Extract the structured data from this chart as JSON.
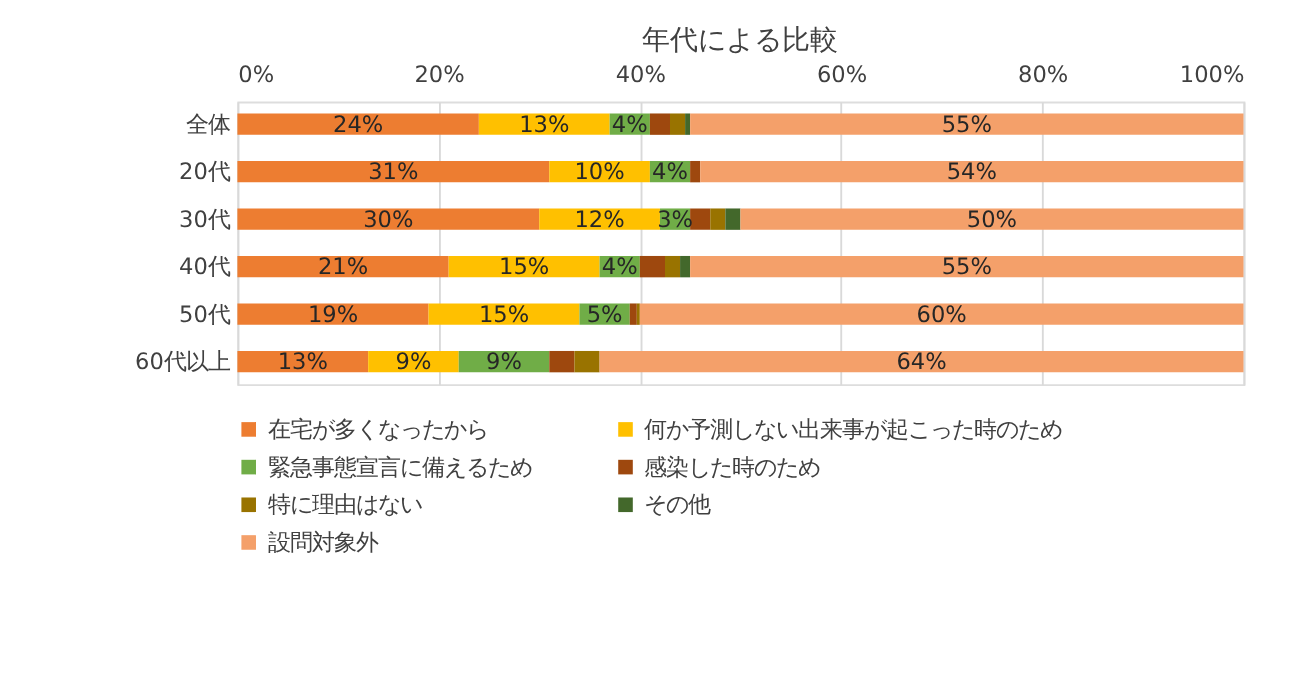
{
  "chart_data": {
    "type": "bar",
    "orientation": "horizontal",
    "stacked": true,
    "title": "年代による比較",
    "categories": [
      "全体",
      "20代",
      "30代",
      "40代",
      "50代",
      "60代以上"
    ],
    "series": [
      {
        "name": "在宅が多くなったから",
        "color": "#ed7d31",
        "values": [
          24,
          31,
          30,
          21,
          19,
          13
        ],
        "value_labels": [
          "24%",
          "31%",
          "30%",
          "21%",
          "19%",
          "13%"
        ]
      },
      {
        "name": "何か予測しない出来事が起こった時のため",
        "color": "#ffc000",
        "values": [
          13,
          10,
          12,
          15,
          15,
          9
        ],
        "value_labels": [
          "13%",
          "10%",
          "12%",
          "15%",
          "15%",
          "9%"
        ]
      },
      {
        "name": "緊急事態宣言に備えるため",
        "color": "#70ad47",
        "values": [
          4,
          4,
          3,
          4,
          5,
          9
        ],
        "value_labels": [
          "4%",
          "4%",
          "3%",
          "4%",
          "5%",
          "9%"
        ]
      },
      {
        "name": "感染した時のため",
        "color": "#9e480e",
        "values": [
          2,
          1,
          2,
          2.5,
          0.7,
          2.5
        ]
      },
      {
        "name": "特に理由はない",
        "color": "#997300",
        "values": [
          1.5,
          0,
          1.5,
          1.5,
          0.3,
          2.5
        ]
      },
      {
        "name": "その他",
        "color": "#43682b",
        "values": [
          0.5,
          0,
          1.5,
          1,
          0,
          0
        ]
      },
      {
        "name": "設問対象外",
        "color": "#f4a06a",
        "values": [
          55,
          54,
          50,
          55,
          60,
          64
        ],
        "value_labels": [
          "55%",
          "54%",
          "50%",
          "55%",
          "60%",
          "64%"
        ]
      }
    ],
    "xlim": [
      0,
      100
    ],
    "xticks": [
      {
        "value": 0,
        "label": "0%"
      },
      {
        "value": 20,
        "label": "20%"
      },
      {
        "value": 40,
        "label": "40%"
      },
      {
        "value": 60,
        "label": "60%"
      },
      {
        "value": 80,
        "label": "80%"
      },
      {
        "value": 100,
        "label": "100%"
      }
    ],
    "grid": "x",
    "legend": "bottom"
  }
}
